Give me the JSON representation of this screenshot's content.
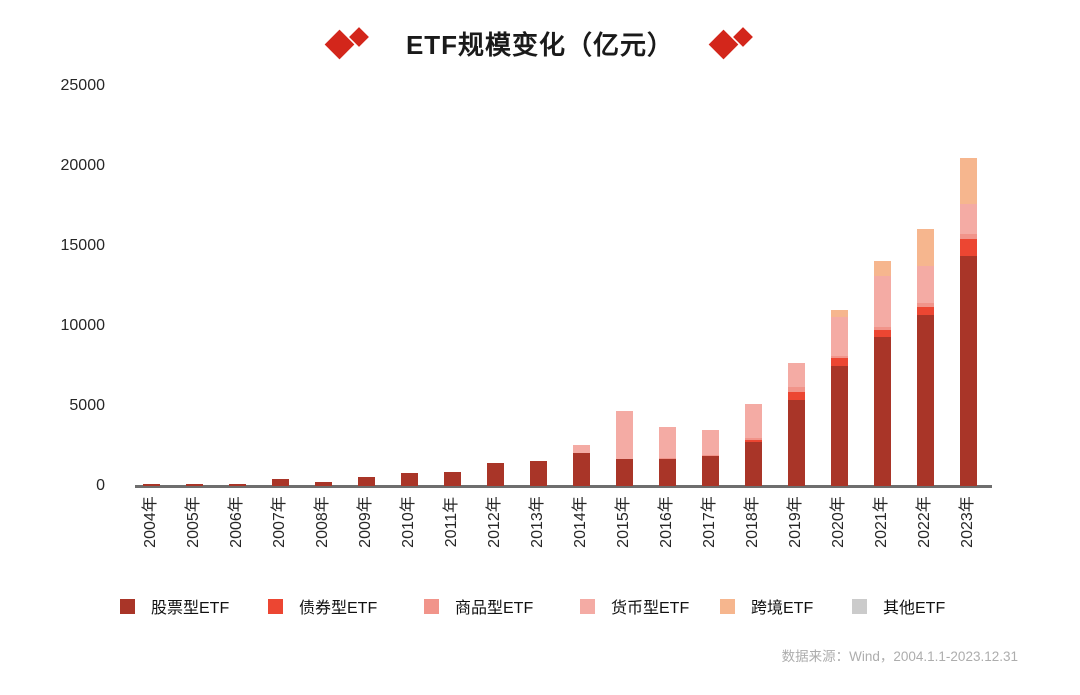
{
  "title": "ETF规模变化（亿元）",
  "footer": "数据来源：Wind，2004.1.1-2023.12.31",
  "colors": {
    "ornament_red": "#D3261B",
    "axis_gray": "#6E6E6E",
    "stock_etf": "#A93528",
    "bond_etf": "#EC4632",
    "commodity_etf": "#F1948A",
    "money_etf": "#F4ABA4",
    "crossborder_etf": "#F6B68E",
    "other_etf": "#CBCBCB"
  },
  "icons": {
    "ornament": "double-diamond-icon"
  },
  "chart_data": {
    "type": "bar",
    "stacked": true,
    "title": "ETF规模变化（亿元）",
    "xlabel": "",
    "ylabel": "",
    "ylim": [
      0,
      25000
    ],
    "yticks": [
      0,
      5000,
      10000,
      15000,
      20000,
      25000
    ],
    "grid": false,
    "legend_position": "bottom",
    "categories": [
      "2004年",
      "2005年",
      "2006年",
      "2007年",
      "2008年",
      "2009年",
      "2010年",
      "2011年",
      "2012年",
      "2013年",
      "2014年",
      "2015年",
      "2016年",
      "2017年",
      "2018年",
      "2019年",
      "2020年",
      "2021年",
      "2022年",
      "2023年"
    ],
    "series": [
      {
        "name": "股票型ETF",
        "color": "#A93528",
        "values": [
          120,
          110,
          140,
          420,
          250,
          590,
          810,
          870,
          1440,
          1560,
          2060,
          1700,
          1700,
          1880,
          2750,
          5400,
          7500,
          9300,
          10700,
          14400
        ]
      },
      {
        "name": "债券型ETF",
        "color": "#EC4632",
        "values": [
          0,
          0,
          0,
          0,
          0,
          0,
          0,
          0,
          0,
          0,
          0,
          0,
          0,
          0,
          150,
          500,
          500,
          450,
          500,
          1050
        ]
      },
      {
        "name": "商品型ETF",
        "color": "#F1948A",
        "values": [
          0,
          0,
          0,
          0,
          0,
          0,
          0,
          0,
          0,
          0,
          0,
          0,
          50,
          80,
          100,
          300,
          150,
          200,
          250,
          300
        ]
      },
      {
        "name": "货币型ETF",
        "color": "#F4ABA4",
        "values": [
          0,
          0,
          0,
          0,
          0,
          0,
          0,
          0,
          0,
          0,
          500,
          3000,
          1950,
          1570,
          2100,
          1500,
          2400,
          3200,
          2300,
          1900
        ]
      },
      {
        "name": "跨境ETF",
        "color": "#F6B68E",
        "values": [
          0,
          0,
          0,
          0,
          0,
          0,
          0,
          0,
          0,
          0,
          0,
          0,
          0,
          0,
          0,
          0,
          450,
          900,
          2300,
          2850
        ]
      },
      {
        "name": "其他ETF",
        "color": "#CBCBCB",
        "values": [
          0,
          0,
          0,
          0,
          0,
          0,
          0,
          0,
          0,
          0,
          0,
          0,
          0,
          0,
          0,
          0,
          0,
          0,
          0,
          0
        ]
      }
    ],
    "totals": [
      120,
      110,
      140,
      420,
      250,
      590,
      810,
      870,
      1440,
      1560,
      2560,
      4700,
      3700,
      3530,
      5100,
      7700,
      11000,
      14050,
      16050,
      20500
    ]
  }
}
